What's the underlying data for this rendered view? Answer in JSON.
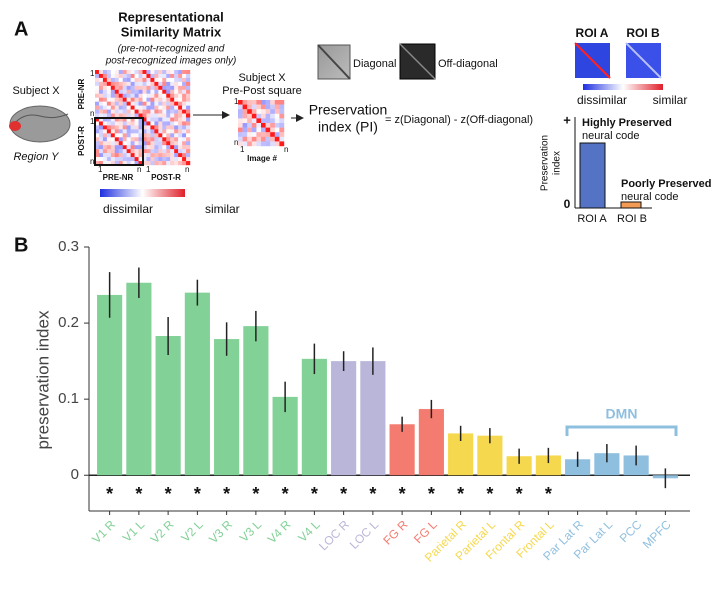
{
  "panel_a": {
    "panel_label": "A",
    "rsm_title": [
      "Representational",
      "Similarity Matrix"
    ],
    "rsm_note": [
      "(pre-not-recognized and",
      "post-recognized images only)"
    ],
    "subject": "Subject X",
    "region": "Region Y",
    "pre_label": "PRE-NR",
    "post_label": "POST-R",
    "one": "1",
    "n": "n",
    "dissimilar": "dissimilar",
    "similar": "similar",
    "square_title": [
      "Subject X",
      "Pre-Post square"
    ],
    "image_axis": "Image #",
    "diagonal": "Diagonal",
    "off_diagonal": "Off-diagonal",
    "pi_title": [
      "Preservation",
      "index (PI)"
    ],
    "pi_formula": "= z(Diagonal) - z(Off-diagonal)",
    "roi_a": "ROI A",
    "roi_b": "ROI B",
    "mini_ylabel": [
      "Preservation",
      "index"
    ],
    "plus": "+",
    "zero": "0",
    "high": "Highly Preserved",
    "poor": "Poorly Preserved",
    "neural_code": "neural code"
  },
  "chart_data": {
    "type": "bar",
    "panel_label": "B",
    "ylabel": "preservation index",
    "categories": [
      "V1 R",
      "V1 L",
      "V2 R",
      "V2 L",
      "V3 R",
      "V3 L",
      "V4 R",
      "V4 L",
      "LOC R",
      "LOC L",
      "FG R",
      "FG L",
      "Parietal R",
      "Parietal L",
      "Frontal R",
      "Frontal L",
      "Par Lat R",
      "Par Lat L",
      "PCC",
      "MPFC"
    ],
    "values": [
      0.237,
      0.253,
      0.183,
      0.24,
      0.179,
      0.196,
      0.103,
      0.153,
      0.15,
      0.15,
      0.067,
      0.087,
      0.055,
      0.052,
      0.025,
      0.026,
      0.021,
      0.029,
      0.026,
      -0.004
    ],
    "errors": [
      0.03,
      0.02,
      0.025,
      0.017,
      0.022,
      0.02,
      0.02,
      0.02,
      0.013,
      0.018,
      0.01,
      0.012,
      0.01,
      0.01,
      0.01,
      0.01,
      0.01,
      0.012,
      0.013,
      0.013
    ],
    "colors": [
      "#82d197",
      "#82d197",
      "#82d197",
      "#82d197",
      "#82d197",
      "#82d197",
      "#82d197",
      "#82d197",
      "#bab6d9",
      "#bab6d9",
      "#f47b70",
      "#f47b70",
      "#f6d84e",
      "#f6d84e",
      "#f6d84e",
      "#f6d84e",
      "#8fbfdf",
      "#8fbfdf",
      "#8fbfdf",
      "#8fbfdf"
    ],
    "significance": [
      "*",
      "*",
      "*",
      "*",
      "*",
      "*",
      "*",
      "*",
      "*",
      "*",
      "*",
      "*",
      "*",
      "*",
      "*",
      "*",
      null,
      null,
      null,
      null
    ],
    "bracket_label": "DMN",
    "bracket_color": "#8fbfdf",
    "ylim": [
      -0.047,
      0.3
    ],
    "yticks": [
      0,
      0.1,
      0.2,
      0.3
    ]
  }
}
